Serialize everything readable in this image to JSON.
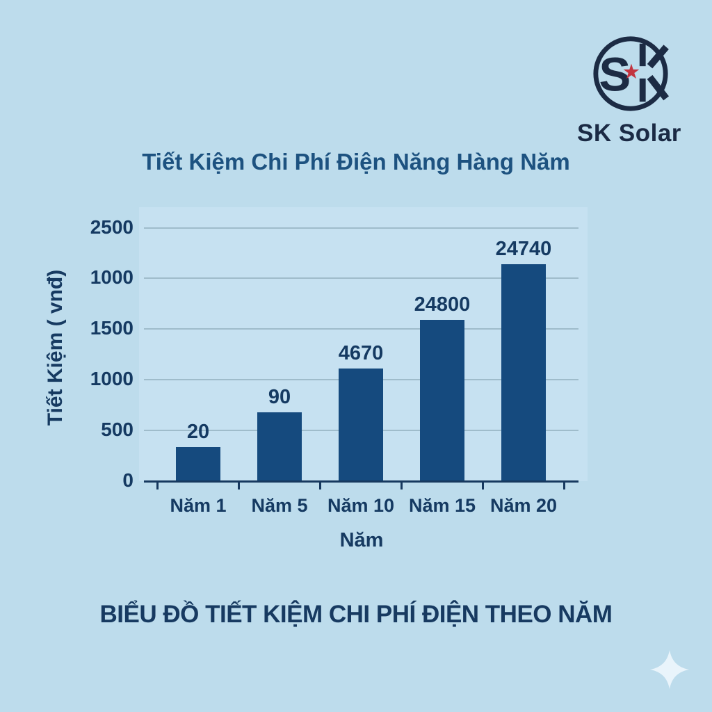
{
  "page": {
    "background_color": "#bddcec",
    "bottom_heading": "BIỂU ĐỒ TIẾT KIỆM CHI PHÍ ĐIỆN THEO NĂM"
  },
  "brand": {
    "name": "SK Solar",
    "monogram_s": "S",
    "star_glyph": "★",
    "navy": "#1c2b44",
    "star_red": "#c23440"
  },
  "chart_data": {
    "type": "bar",
    "title": "Tiết Kiệm Chi Phí Điện Năng Hàng Năm",
    "xlabel": "Năm",
    "ylabel": "Tiết Kiệm ( vnđ)",
    "categories": [
      "Năm 1",
      "Năm 5",
      "Năm 10",
      "Năm 15",
      "Năm 20"
    ],
    "values": [
      20,
      90,
      4670,
      24800,
      24740
    ],
    "value_labels": [
      "20",
      "90",
      "4670",
      "24800",
      "24740"
    ],
    "y_tick_labels_top_to_bottom": [
      "2500",
      "1000",
      "1500",
      "1000",
      "500",
      "0"
    ],
    "bar_height_fractions": [
      0.135,
      0.272,
      0.445,
      0.637,
      0.857
    ],
    "grid": true,
    "legend": false,
    "colors": {
      "bar": "#154a7e",
      "gridline": "#9fbccb",
      "axis": "#17395f",
      "labels": "#153a62",
      "title": "#1d5280",
      "plot_background": "#c6e1f1"
    }
  }
}
